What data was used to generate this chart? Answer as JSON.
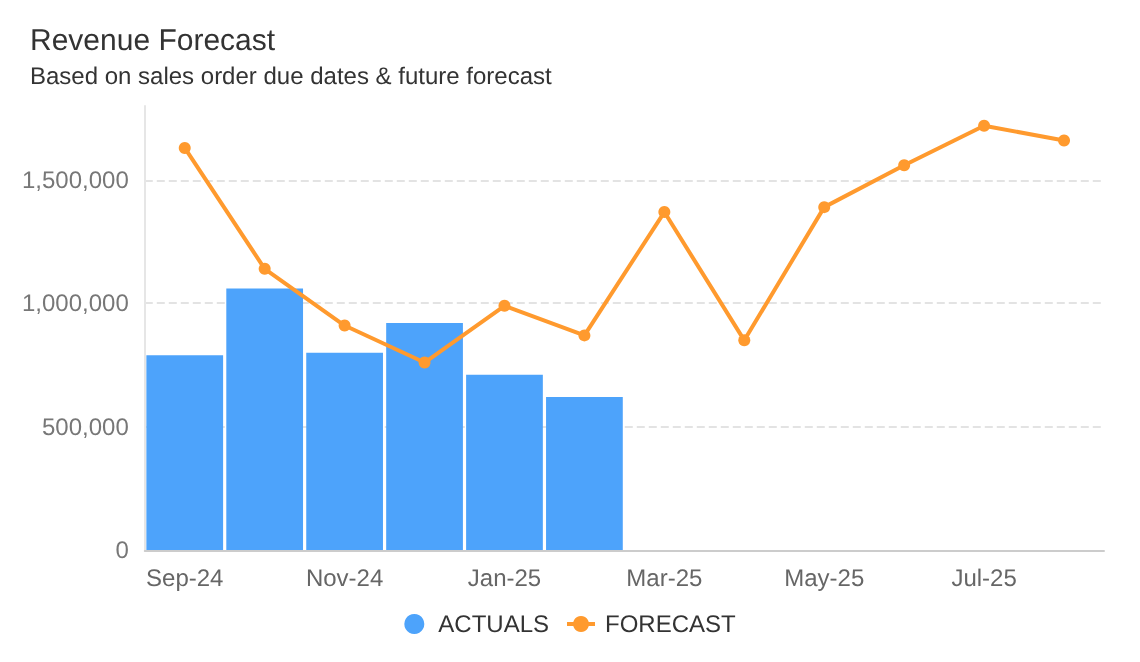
{
  "chart_data": {
    "type": "bar",
    "title": "Revenue Forecast",
    "subtitle": "Based on sales order due dates & future forecast",
    "categories": [
      "Sep-24",
      null,
      "Nov-24",
      null,
      "Jan-25",
      null,
      "Mar-25",
      null,
      "May-25",
      null,
      "Jul-25",
      null
    ],
    "series": [
      {
        "name": "ACTUALS",
        "color": "#4da3fb",
        "values": [
          790000,
          1060000,
          800000,
          920000,
          710000,
          620000,
          null,
          null,
          null,
          null,
          null,
          null
        ]
      },
      {
        "name": "FORECAST",
        "type": "line",
        "color": "#ff9a2e",
        "values": [
          1630000,
          1140000,
          910000,
          760000,
          990000,
          870000,
          1370000,
          850000,
          1390000,
          1560000,
          1720000,
          1660000
        ]
      }
    ],
    "ylim": [
      0,
      1800000
    ],
    "yticks": [
      0,
      {
        "value": 500000,
        "label": "500,000"
      },
      {
        "value": 1000000,
        "label": "1,000,000"
      },
      {
        "value": 1500000,
        "label": "1,500,000"
      }
    ],
    "grid": "y",
    "legend": "bottom",
    "marker": "circle"
  }
}
